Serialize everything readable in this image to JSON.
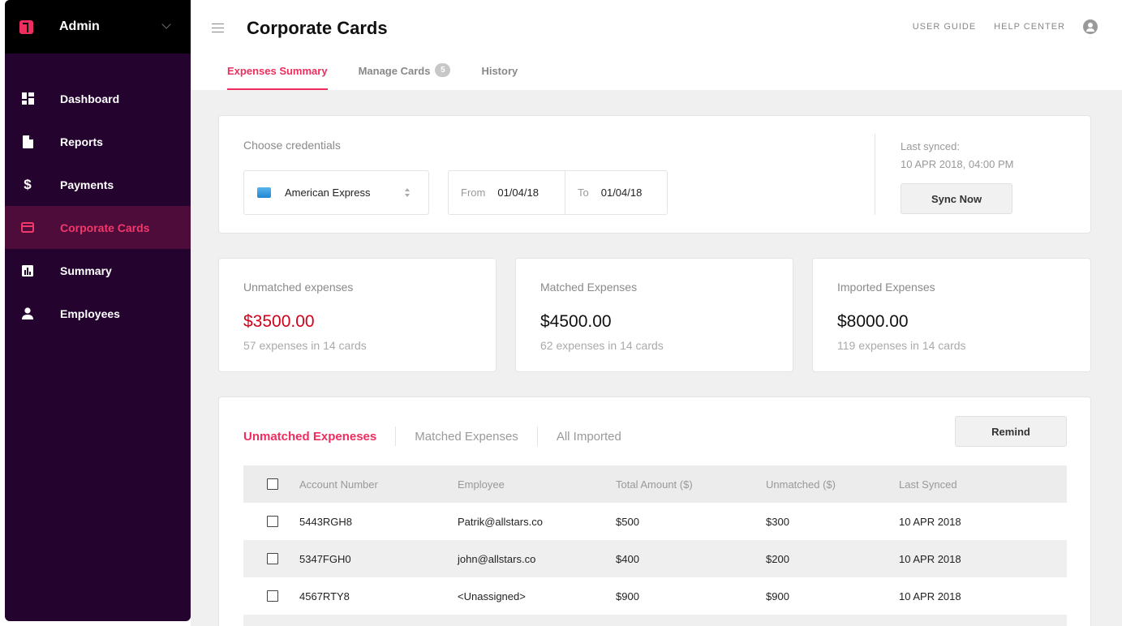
{
  "sidebar": {
    "title": "Admin",
    "items": [
      {
        "label": "Dashboard",
        "icon": "dashboard-icon"
      },
      {
        "label": "Reports",
        "icon": "document-icon"
      },
      {
        "label": "Payments",
        "icon": "dollar-icon"
      },
      {
        "label": "Corporate Cards",
        "icon": "card-icon"
      },
      {
        "label": "Summary",
        "icon": "bar-chart-icon"
      },
      {
        "label": "Employees",
        "icon": "person-icon"
      }
    ],
    "active_index": 3
  },
  "header": {
    "title": "Corporate Cards",
    "user_guide": "USER GUIDE",
    "help_center": "HELP CENTER"
  },
  "tabs": {
    "expenses_summary": "Expenses Summary",
    "manage_cards": "Manage Cards",
    "manage_cards_count": "5",
    "history": "History"
  },
  "credentials": {
    "label": "Choose credentials",
    "selected": "American Express",
    "from_label": "From",
    "from_value": "01/04/18",
    "to_label": "To",
    "to_value": "01/04/18",
    "last_synced_label": "Last synced:",
    "last_synced_value": "10 APR 2018, 04:00 PM",
    "sync_button": "Sync Now"
  },
  "stats": {
    "unmatched": {
      "label": "Unmatched expenses",
      "value": "$3500.00",
      "sub": "57 expenses in 14 cards"
    },
    "matched": {
      "label": "Matched Expenses",
      "value": "$4500.00",
      "sub": "62 expenses in 14 cards"
    },
    "imported": {
      "label": "Imported Expenses",
      "value": "$8000.00",
      "sub": "119 expenses in 14 cards"
    }
  },
  "list": {
    "tabs": [
      "Unmatched Expeneses",
      "Matched Expenses",
      "All Imported"
    ],
    "remind_button": "Remind",
    "columns": [
      "Account Number",
      "Employee",
      "Total Amount ($)",
      "Unmatched ($)",
      "Last Synced"
    ],
    "rows": [
      [
        "5443RGH8",
        "Patrik@allstars.co",
        "$500",
        "$300",
        "10 APR 2018"
      ],
      [
        "5347FGH0",
        "john@allstars.co",
        "$400",
        "$200",
        "10 APR 2018"
      ],
      [
        "4567RTY8",
        "<Unassigned>",
        "$900",
        "$900",
        "10 APR 2018"
      ]
    ]
  },
  "colors": {
    "accent": "#ef2d5e",
    "sidebar_bg": "#24042f",
    "sidebar_active_bg": "#4e0c3b",
    "negative": "#d0021b"
  }
}
